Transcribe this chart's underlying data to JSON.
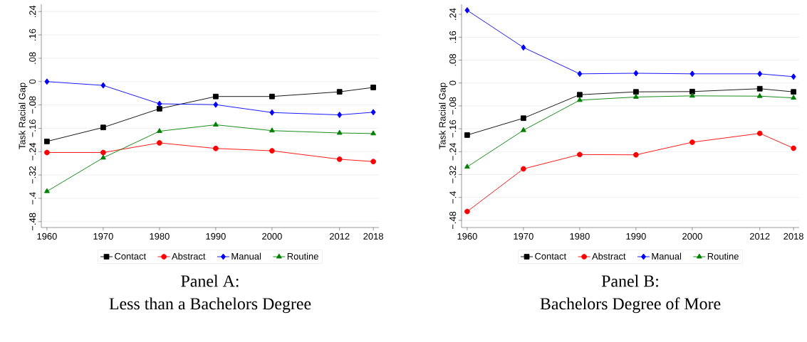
{
  "chart_data": [
    {
      "type": "line",
      "title": "Panel A:",
      "subtitle": "Less than a Bachelors Degree",
      "ylabel": "Task Racial Gap",
      "x": [
        1960,
        1970,
        1980,
        1990,
        2000,
        2012,
        2018
      ],
      "xlim": [
        1959,
        2019
      ],
      "xticks": [
        1960,
        1970,
        1980,
        1990,
        2000,
        2012,
        2018
      ],
      "ylim": [
        -0.5,
        0.265
      ],
      "yticks": [
        {
          "value": -0.48,
          "label": "−.48"
        },
        {
          "value": -0.4,
          "label": "−.4"
        },
        {
          "value": -0.32,
          "label": "−.32"
        },
        {
          "value": -0.24,
          "label": "−.24"
        },
        {
          "value": -0.16,
          "label": "−.16"
        },
        {
          "value": -0.08,
          "label": "−.08"
        },
        {
          "value": 0,
          "label": "0"
        },
        {
          "value": 0.08,
          "label": ".08"
        },
        {
          "value": 0.16,
          "label": ".16"
        },
        {
          "value": 0.24,
          "label": ".24"
        }
      ],
      "grid": "y",
      "legend": "bottom",
      "series": [
        {
          "name": "Contact",
          "color": "#000000",
          "marker": "square",
          "values": [
            -0.205,
            -0.157,
            -0.093,
            -0.051,
            -0.051,
            -0.035,
            -0.02
          ]
        },
        {
          "name": "Abstract",
          "color": "#ff0000",
          "marker": "circle",
          "values": [
            -0.243,
            -0.243,
            -0.21,
            -0.229,
            -0.237,
            -0.266,
            -0.274
          ]
        },
        {
          "name": "Manual",
          "color": "#0000ff",
          "marker": "diamond",
          "values": [
            0.0,
            -0.013,
            -0.076,
            -0.079,
            -0.106,
            -0.114,
            -0.105
          ]
        },
        {
          "name": "Routine",
          "color": "#008000",
          "marker": "triangle",
          "values": [
            -0.376,
            -0.261,
            -0.17,
            -0.148,
            -0.168,
            -0.176,
            -0.178
          ]
        }
      ]
    },
    {
      "type": "line",
      "title": "Panel B:",
      "subtitle": "Bachelors Degree of More",
      "ylabel": "Task Racial Gap",
      "x": [
        1960,
        1970,
        1980,
        1990,
        2000,
        2012,
        2018
      ],
      "xlim": [
        1959,
        2019
      ],
      "xticks": [
        1960,
        1970,
        1980,
        1990,
        2000,
        2012,
        2018
      ],
      "ylim": [
        -0.505,
        0.275
      ],
      "yticks": [
        {
          "value": -0.48,
          "label": "−.48"
        },
        {
          "value": -0.4,
          "label": "−.4"
        },
        {
          "value": -0.32,
          "label": "−.32"
        },
        {
          "value": -0.24,
          "label": "−.24"
        },
        {
          "value": -0.16,
          "label": "−.16"
        },
        {
          "value": -0.08,
          "label": "−.08"
        },
        {
          "value": 0,
          "label": "0"
        },
        {
          "value": 0.08,
          "label": ".08"
        },
        {
          "value": 0.16,
          "label": ".16"
        },
        {
          "value": 0.24,
          "label": ".24"
        }
      ],
      "grid": "y",
      "legend": "bottom",
      "series": [
        {
          "name": "Contact",
          "color": "#000000",
          "marker": "square",
          "values": [
            -0.182,
            -0.123,
            -0.041,
            -0.031,
            -0.03,
            -0.02,
            -0.031
          ]
        },
        {
          "name": "Abstract",
          "color": "#ff0000",
          "marker": "circle",
          "values": [
            -0.449,
            -0.3,
            -0.25,
            -0.251,
            -0.207,
            -0.176,
            -0.228
          ]
        },
        {
          "name": "Manual",
          "color": "#0000ff",
          "marker": "diamond",
          "values": [
            0.254,
            0.124,
            0.032,
            0.034,
            0.032,
            0.032,
            0.022
          ]
        },
        {
          "name": "Routine",
          "color": "#008000",
          "marker": "triangle",
          "values": [
            -0.293,
            -0.165,
            -0.06,
            -0.049,
            -0.045,
            -0.046,
            -0.052
          ]
        }
      ]
    }
  ]
}
